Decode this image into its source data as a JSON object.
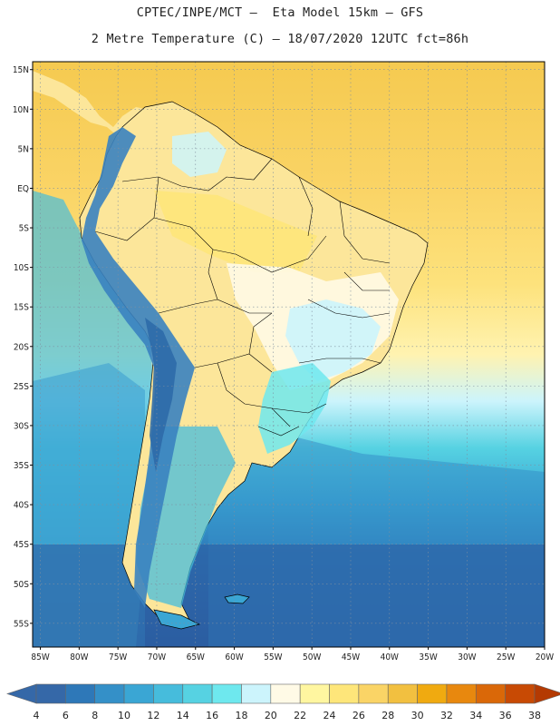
{
  "header": {
    "line1": "CPTEC/INPE/MCT –  Eta Model 15km – GFS",
    "line2": "2 Metre Temperature (C) – 18/07/2020 12UTC fct=86h"
  },
  "map": {
    "lat_labels": [
      "15N",
      "10N",
      "5N",
      "EQ",
      "5S",
      "10S",
      "15S",
      "20S",
      "25S",
      "30S",
      "35S",
      "40S",
      "45S",
      "50S",
      "55S"
    ],
    "lon_labels": [
      "85W",
      "80W",
      "75W",
      "70W",
      "65W",
      "60W",
      "55W",
      "50W",
      "45W",
      "40W",
      "35W",
      "30W",
      "25W",
      "20W"
    ],
    "lon_range": [
      -86,
      -20
    ],
    "lat_range": [
      -58,
      16
    ],
    "grid": "dotted"
  },
  "colorbar": {
    "levels": [
      "4",
      "6",
      "8",
      "10",
      "12",
      "14",
      "16",
      "18",
      "20",
      "22",
      "24",
      "26",
      "28",
      "30",
      "32",
      "34",
      "36",
      "38"
    ],
    "colors": [
      "#3568a8",
      "#2e78b8",
      "#3490c8",
      "#3aa6d4",
      "#46bcdc",
      "#56d2e2",
      "#6ee8ee",
      "#ccf4fc",
      "#fffae6",
      "#fff6a0",
      "#fee67a",
      "#fad466",
      "#f2c040",
      "#f0aa10",
      "#e8880e",
      "#da6808",
      "#c84a04",
      "#b43a02"
    ]
  },
  "colors": {
    "land_warm": "#fce69a",
    "ocean_tropical": "#f5cb53",
    "ocean_cold": "#2c5ea2",
    "andes": "#3a82c0",
    "border": "#000000"
  }
}
